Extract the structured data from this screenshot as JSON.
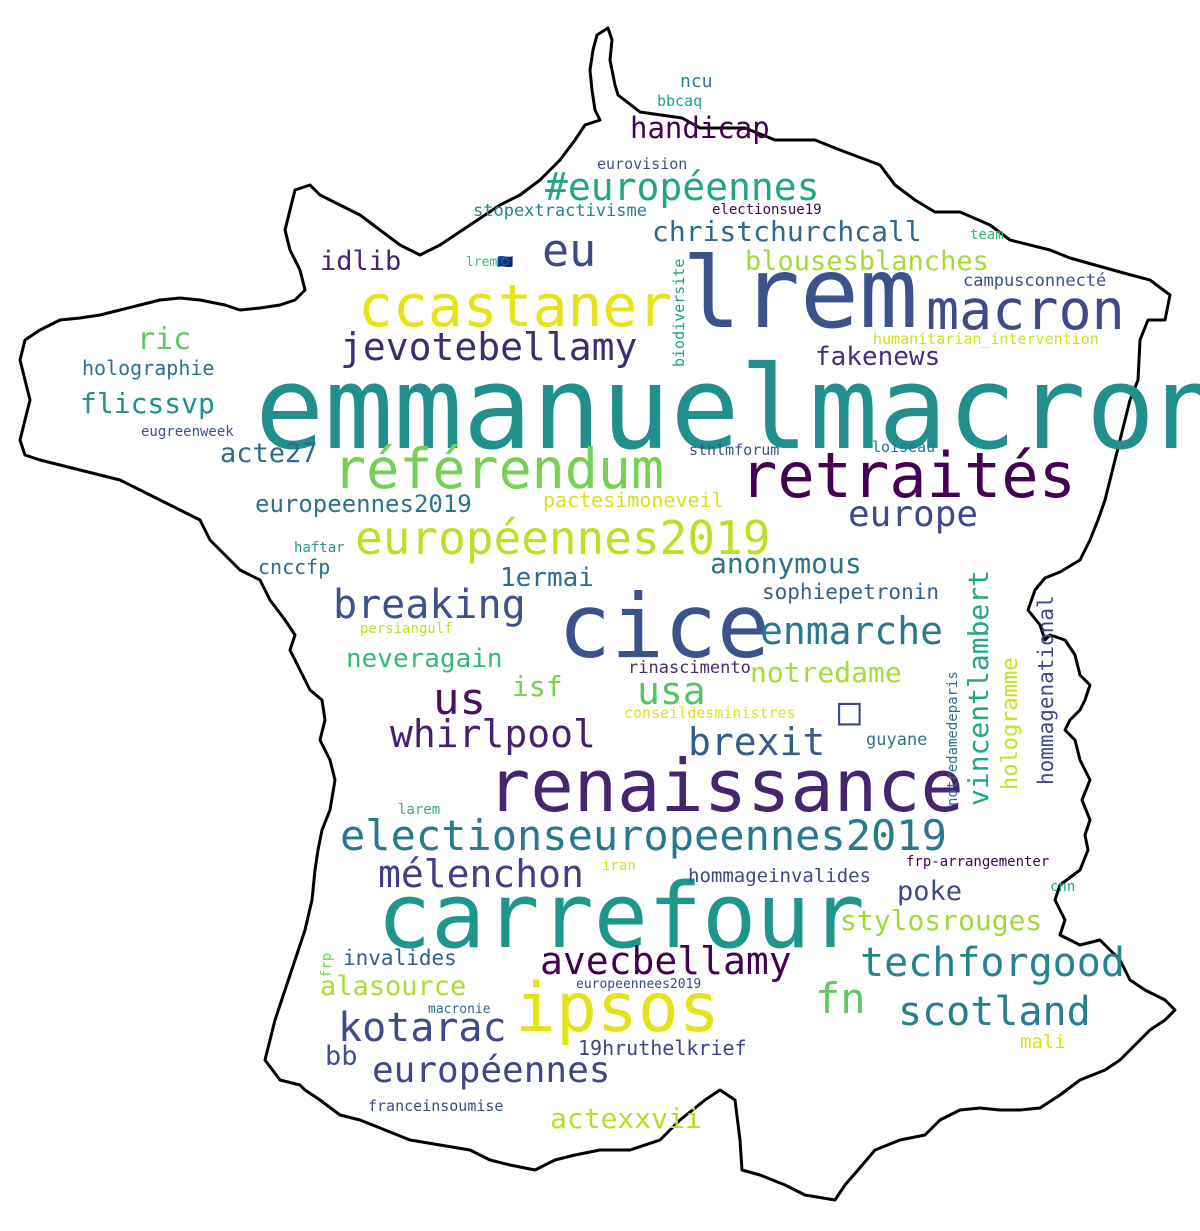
{
  "words": [
    {
      "text": "emmanuelmacron",
      "color": "#21908d"
    },
    {
      "text": "lrem",
      "color": "#3b528b"
    },
    {
      "text": "cice",
      "color": "#3b528b"
    },
    {
      "text": "carrefour",
      "color": "#1f968b"
    },
    {
      "text": "renaissance",
      "color": "#46256f"
    },
    {
      "text": "retraités",
      "color": "#440154"
    },
    {
      "text": "ccastaner",
      "color": "#e6e419"
    },
    {
      "text": "référendum",
      "color": "#75d054"
    },
    {
      "text": "macron",
      "color": "#3e4a89"
    },
    {
      "text": "ipsos",
      "color": "#e2e418"
    },
    {
      "text": "electionseuropeennes2019",
      "color": "#2a788e"
    },
    {
      "text": "européennes2019",
      "color": "#bddf26"
    },
    {
      "text": "eu",
      "color": "#3e4989"
    },
    {
      "text": "#européennes",
      "color": "#21a685"
    },
    {
      "text": "jevotebellamy",
      "color": "#3f2b6e"
    },
    {
      "text": "techforgood",
      "color": "#25848e"
    },
    {
      "text": "breaking",
      "color": "#3b528b"
    },
    {
      "text": "enmarche",
      "color": "#2a788e"
    },
    {
      "text": "avecbellamy",
      "color": "#440154"
    },
    {
      "text": "scotland",
      "color": "#277f8e"
    },
    {
      "text": "kotarac",
      "color": "#3e4a89"
    },
    {
      "text": "whirlpool",
      "color": "#481f70"
    },
    {
      "text": "mélenchon",
      "color": "#433e85"
    },
    {
      "text": "européennes",
      "color": "#3f4788"
    },
    {
      "text": "brexit",
      "color": "#365c8d"
    },
    {
      "text": "us",
      "color": "#471063"
    },
    {
      "text": "usa",
      "color": "#52c569"
    },
    {
      "text": "fn",
      "color": "#5ec962"
    },
    {
      "text": "europe",
      "color": "#3e4a89"
    },
    {
      "text": "christchurchcall",
      "color": "#31688e"
    },
    {
      "text": "handicap",
      "color": "#440154"
    },
    {
      "text": "blousesblanches",
      "color": "#a5db36"
    },
    {
      "text": "stylosrouges",
      "color": "#a0da39"
    },
    {
      "text": "anonymous",
      "color": "#2c728e"
    },
    {
      "text": "notredame",
      "color": "#a8db34"
    },
    {
      "text": "actexxvii",
      "color": "#b5de2b"
    },
    {
      "text": "neveragain",
      "color": "#37b878"
    },
    {
      "text": "acte27",
      "color": "#306a8e"
    },
    {
      "text": "europeennes2019",
      "color": "#2c718e"
    },
    {
      "text": "flicssvp",
      "color": "#21918c"
    },
    {
      "text": "fakenews",
      "color": "#472d7b"
    },
    {
      "text": "1ermai",
      "color": "#2f6c8e"
    },
    {
      "text": "idlib",
      "color": "#482475"
    },
    {
      "text": "ric",
      "color": "#5ec962"
    },
    {
      "text": "isf",
      "color": "#7ad151"
    },
    {
      "text": "alasource",
      "color": "#addc30"
    },
    {
      "text": "poke",
      "color": "#3e4989"
    },
    {
      "text": "vincentlambert",
      "color": "#22a884"
    },
    {
      "text": "cnccfp",
      "color": "#306a8e"
    },
    {
      "text": "hologramme",
      "color": "#c8e020"
    },
    {
      "text": "hommagenational",
      "color": "#3e4a89"
    },
    {
      "text": "sophiepetronin",
      "color": "#355f8d"
    },
    {
      "text": "invalides",
      "color": "#355e8d"
    },
    {
      "text": "hommageinvalides",
      "color": "#3f4788"
    },
    {
      "text": "19hruthelkrief",
      "color": "#414487"
    },
    {
      "text": "bb",
      "color": "#3b528b"
    },
    {
      "text": "holographie",
      "color": "#2c728e"
    },
    {
      "text": "campusconnecté",
      "color": "#3b528b"
    },
    {
      "text": "pactesimoneveil",
      "color": "#d8e219"
    },
    {
      "text": "stopextractivisme",
      "color": "#26828e"
    },
    {
      "text": "mali",
      "color": "#d2e21b"
    },
    {
      "text": "guyane",
      "color": "#2c728e"
    },
    {
      "text": "rinascimento",
      "color": "#472c7a"
    },
    {
      "text": "humanitarian_intervention",
      "color": "#d0e11c"
    },
    {
      "text": "ncu",
      "color": "#26818e"
    },
    {
      "text": "bbcaq",
      "color": "#1fa187"
    },
    {
      "text": "eurovision",
      "color": "#3b528b"
    },
    {
      "text": "electionsue19",
      "color": "#440154"
    },
    {
      "text": "team",
      "color": "#35b779"
    },
    {
      "text": "lrem🇪🇺",
      "color": "#3dbc74"
    },
    {
      "text": "biodiversite",
      "color": "#1fa188"
    },
    {
      "text": "sthlmforum",
      "color": "#3b528b"
    },
    {
      "text": "loiseau",
      "color": "#2c728e"
    },
    {
      "text": "eugreenweek",
      "color": "#3b528b"
    },
    {
      "text": "haftar",
      "color": "#1f9a8a"
    },
    {
      "text": "persiangulf",
      "color": "#c2df23"
    },
    {
      "text": "conseildesministres",
      "color": "#dfe318"
    },
    {
      "text": "notredamedeparis",
      "color": "#2d708e"
    },
    {
      "text": "larem",
      "color": "#2db27d"
    },
    {
      "text": "iran",
      "color": "#d5e21a"
    },
    {
      "text": "frp-arrangementer",
      "color": "#440154"
    },
    {
      "text": "cnn",
      "color": "#20a386"
    },
    {
      "text": "frp",
      "color": "#73d056"
    },
    {
      "text": "europeennees2019",
      "color": "#3e4989"
    },
    {
      "text": "macronie",
      "color": "#31688e"
    },
    {
      "text": "franceinsoumise",
      "color": "#3e4a89"
    },
    {
      "text": "□",
      "color": "#3e4989"
    }
  ]
}
